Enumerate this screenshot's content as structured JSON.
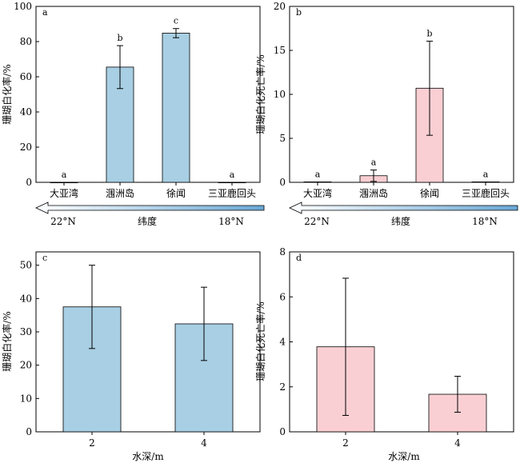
{
  "colors": {
    "bleaching_bar": "#a8cfe3",
    "mortality_bar": "#f9cfd3",
    "arrow_fill_start": "#ffffff",
    "arrow_fill_end": "#6aa8d5",
    "stroke": "#000000"
  },
  "chart_data": [
    {
      "panel_label": "a",
      "type": "bar",
      "categories": [
        "大亚湾",
        "涠洲岛",
        "徐闻",
        "三亚鹿回头"
      ],
      "values": [
        0,
        65.5,
        84.8,
        0
      ],
      "error": [
        0,
        12.2,
        2.6,
        0
      ],
      "letters": [
        "a",
        "b",
        "c",
        "a"
      ],
      "ylabel": "珊瑚白化率/%",
      "ylim": [
        0,
        100
      ],
      "yticks": [
        "0",
        "20",
        "40",
        "60",
        "80",
        "100"
      ],
      "ytick_values": [
        0,
        20,
        40,
        60,
        80,
        100
      ],
      "latitude_arrow": {
        "left_label": "22°N",
        "center_label": "纬度",
        "right_label": "18°N"
      },
      "bar_color": "#a8cfe3"
    },
    {
      "panel_label": "b",
      "type": "bar",
      "categories": [
        "大亚湾",
        "涠洲岛",
        "徐闻",
        "三亚鹿回头"
      ],
      "values": [
        0.05,
        0.75,
        10.7,
        0.05
      ],
      "error": [
        0,
        0.65,
        5.35,
        0
      ],
      "letters": [
        "a",
        "a",
        "b",
        "a"
      ],
      "ylabel": "珊瑚白化死亡率/%",
      "ylim": [
        0,
        20
      ],
      "yticks": [
        "0",
        "5",
        "10",
        "15",
        "20"
      ],
      "ytick_values": [
        0,
        5,
        10,
        15,
        20
      ],
      "latitude_arrow": {
        "left_label": "22°N",
        "center_label": "纬度",
        "right_label": "18°N"
      },
      "bar_color": "#f9cfd3"
    },
    {
      "panel_label": "c",
      "type": "bar",
      "categories": [
        "2",
        "4"
      ],
      "values": [
        37.5,
        32.4
      ],
      "error": [
        12.5,
        11.0
      ],
      "letters": [],
      "xlabel": "水深/m",
      "ylabel": "珊瑚白化率/%",
      "ylim": [
        0,
        54
      ],
      "yticks": [
        "0",
        "10",
        "20",
        "30",
        "40",
        "50"
      ],
      "ytick_values": [
        0,
        10,
        20,
        30,
        40,
        50
      ],
      "bar_color": "#a8cfe3"
    },
    {
      "panel_label": "d",
      "type": "bar",
      "categories": [
        "2",
        "4"
      ],
      "values": [
        3.78,
        1.67
      ],
      "error": [
        3.05,
        0.8
      ],
      "letters": [],
      "xlabel": "水深/m",
      "ylabel": "珊瑚白化死亡率/%",
      "ylim": [
        0,
        8
      ],
      "yticks": [
        "0",
        "2",
        "4",
        "6",
        "8"
      ],
      "ytick_values": [
        0,
        2,
        4,
        6,
        8
      ],
      "bar_color": "#f9cfd3"
    }
  ]
}
